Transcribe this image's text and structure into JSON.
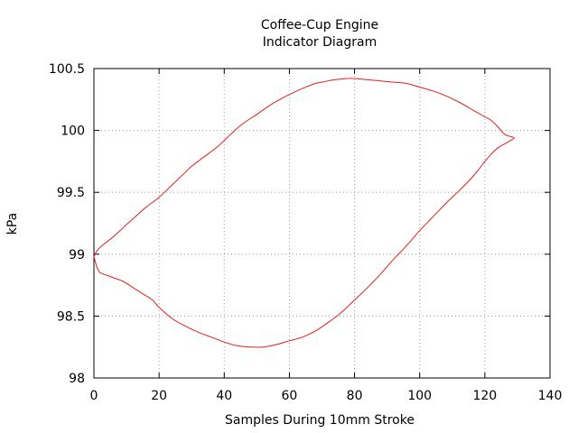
{
  "chart_data": {
    "type": "line",
    "title_line1": "Coffee-Cup Engine",
    "title_line2": "Indicator Diagram",
    "xlabel": "Samples During 10mm Stroke",
    "ylabel": "kPa",
    "xlim": [
      0,
      140
    ],
    "ylim": [
      98,
      100.5
    ],
    "x_ticks": [
      0,
      20,
      40,
      60,
      80,
      100,
      120,
      140
    ],
    "x_tick_labels": [
      "0",
      "20",
      "40",
      "60",
      "80",
      "100",
      "120",
      "140"
    ],
    "y_ticks": [
      98,
      98.5,
      99,
      99.5,
      100,
      100.5
    ],
    "y_tick_labels": [
      "98",
      "98.5",
      "99",
      "99.5",
      "100",
      "100.5"
    ],
    "grid": true,
    "line_color": "#e0201b",
    "series": [
      {
        "x": [
          0,
          1,
          3,
          5,
          8,
          10,
          13,
          16,
          20,
          24,
          28,
          30,
          35,
          38,
          40,
          45,
          50,
          55,
          60,
          65,
          68,
          70,
          74,
          78,
          80,
          84,
          88,
          92,
          96,
          100,
          104,
          108,
          112,
          116,
          120,
          122,
          124,
          126,
          128,
          129,
          128,
          126,
          124,
          122,
          120,
          118,
          115,
          112,
          108,
          104,
          100,
          96,
          92,
          88,
          84,
          80,
          76,
          72,
          68,
          64,
          60,
          56,
          52,
          48,
          44,
          40,
          36,
          32,
          28,
          24,
          20,
          18,
          15,
          12,
          9,
          6,
          4,
          2,
          1,
          0
        ],
        "y": [
          98.98,
          99.03,
          99.08,
          99.12,
          99.19,
          99.24,
          99.31,
          99.38,
          99.46,
          99.56,
          99.66,
          99.71,
          99.81,
          99.87,
          99.92,
          100.04,
          100.13,
          100.22,
          100.29,
          100.35,
          100.38,
          100.39,
          100.41,
          100.42,
          100.42,
          100.41,
          100.4,
          100.39,
          100.38,
          100.35,
          100.32,
          100.28,
          100.23,
          100.17,
          100.11,
          100.08,
          100.03,
          99.97,
          99.95,
          99.94,
          99.92,
          99.89,
          99.86,
          99.81,
          99.75,
          99.68,
          99.59,
          99.51,
          99.41,
          99.3,
          99.19,
          99.07,
          98.96,
          98.84,
          98.73,
          98.63,
          98.53,
          98.45,
          98.38,
          98.33,
          98.3,
          98.27,
          98.25,
          98.25,
          98.26,
          98.29,
          98.33,
          98.37,
          98.42,
          98.48,
          98.57,
          98.63,
          98.68,
          98.73,
          98.78,
          98.81,
          98.83,
          98.85,
          98.89,
          98.98
        ]
      }
    ]
  }
}
